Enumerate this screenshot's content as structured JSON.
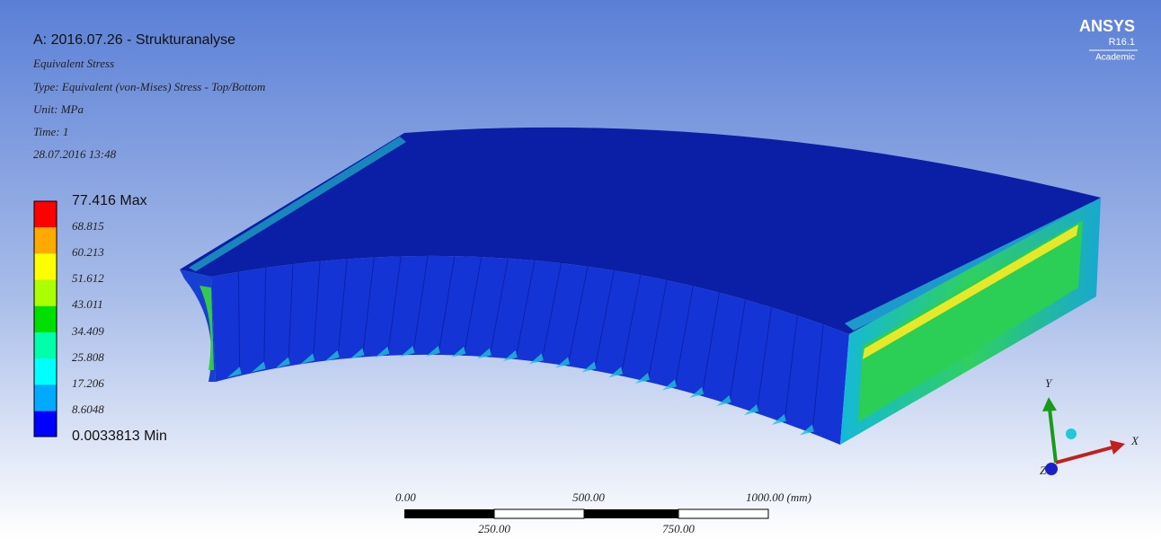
{
  "header": {
    "title": "A: 2016.07.26 - Strukturanalyse",
    "lines": [
      "Equivalent Stress",
      "Type: Equivalent (von-Mises) Stress - Top/Bottom",
      "Unit: MPa",
      "Time: 1",
      "28.07.2016 13:48"
    ]
  },
  "legend": {
    "labels": [
      "77.416 Max",
      "68.815",
      "60.213",
      "51.612",
      "43.011",
      "34.409",
      "25.808",
      "17.206",
      "8.6048",
      "0.0033813 Min"
    ]
  },
  "logo": {
    "name": "ANSYS",
    "version": "R16.1",
    "edition": "Academic"
  },
  "scale_bar": {
    "top_labels": [
      "0.00",
      "500.00",
      "1000.00 (mm)"
    ],
    "bottom_labels": [
      "250.00",
      "750.00"
    ]
  },
  "triad": {
    "x": "X",
    "y": "Y",
    "z": "Z"
  }
}
